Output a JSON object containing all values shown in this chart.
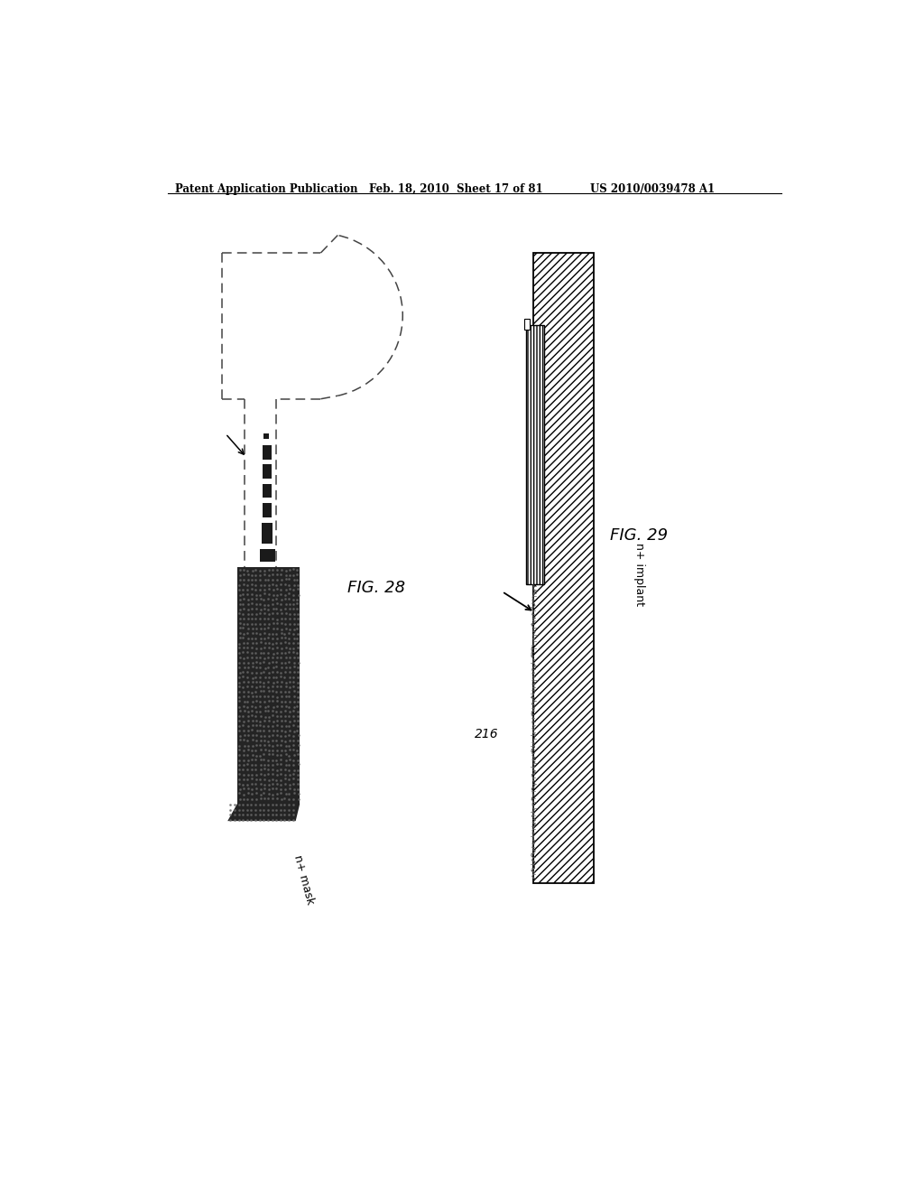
{
  "header_left": "Patent Application Publication",
  "header_mid": "Feb. 18, 2010  Sheet 17 of 81",
  "header_right": "US 2010/0039478 A1",
  "fig28_label": "FIG. 28",
  "fig29_label": "FIG. 29",
  "label_n_plus_mask": "n+ mask",
  "label_n_plus_implant": "n+ implant",
  "label_216": "216",
  "bg_color": "#ffffff",
  "line_color": "#000000"
}
